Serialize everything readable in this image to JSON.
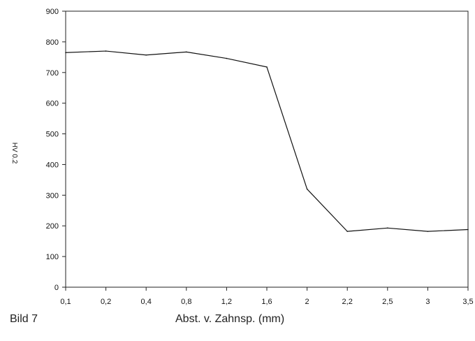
{
  "figure_label": "Bild 7",
  "chart_data": {
    "type": "line",
    "categories": [
      "0,1",
      "0,2",
      "0,4",
      "0,8",
      "1,2",
      "1,6",
      "2",
      "2,2",
      "2,5",
      "3",
      "3,5"
    ],
    "series": [
      {
        "values": [
          765,
          770,
          757,
          767,
          746,
          718,
          320,
          182,
          193,
          182,
          188
        ]
      }
    ],
    "yticks": [
      0,
      100,
      200,
      300,
      400,
      500,
      600,
      700,
      800,
      900
    ],
    "ylim": [
      0,
      900
    ],
    "xlabel": "Abst. v. Zahnsp. (mm)",
    "ylabel": "HV 0.2",
    "grid": false,
    "line_color": "#111111"
  }
}
